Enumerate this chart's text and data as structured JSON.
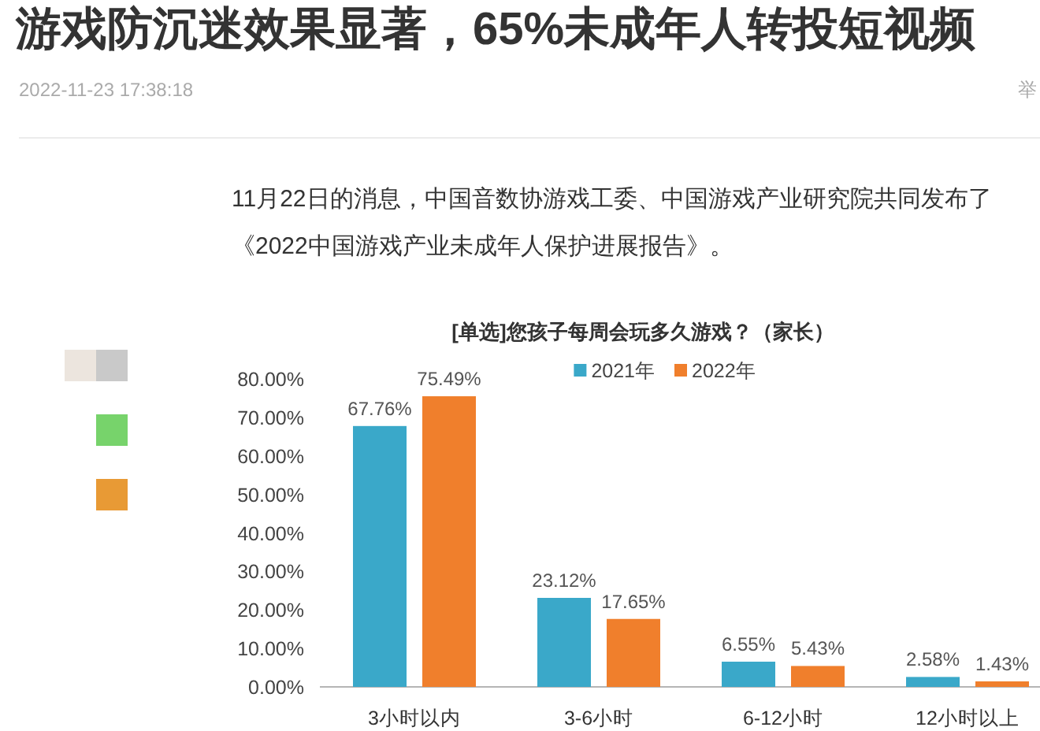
{
  "chart_data": {
    "type": "bar",
    "title": "[单选]您孩子每周会玩多久游戏？（家长）",
    "categories": [
      "3小时以内",
      "3-6小时",
      "6-12小时",
      "12小时以上"
    ],
    "series": [
      {
        "name": "2021年",
        "color": "#3aa8c9",
        "values": [
          67.76,
          23.12,
          6.55,
          2.58
        ],
        "value_labels": [
          "67.76%",
          "23.12%",
          "6.55%",
          "2.58%"
        ]
      },
      {
        "name": "2022年",
        "color": "#f07f2c",
        "values": [
          75.49,
          17.65,
          5.43,
          1.43
        ],
        "value_labels": [
          "75.49%",
          "17.65%",
          "5.43%",
          "1.43%"
        ]
      }
    ],
    "ylim": [
      0,
      80
    ],
    "yticks": [
      {
        "value": 0,
        "label": "0.00%"
      },
      {
        "value": 10,
        "label": "10.00%"
      },
      {
        "value": 20,
        "label": "20.00%"
      },
      {
        "value": 30,
        "label": "30.00%"
      },
      {
        "value": 40,
        "label": "40.00%"
      },
      {
        "value": 50,
        "label": "50.00%"
      },
      {
        "value": 60,
        "label": "60.00%"
      },
      {
        "value": 70,
        "label": "70.00%"
      },
      {
        "value": 80,
        "label": "80.00%"
      }
    ],
    "legend": "top",
    "annotations": [
      "游戏防沉迷效果显著，65%未成年人转投短视频",
      "2022-11-23 17:38:18",
      "举",
      "11月22日的消息，中国音数协游戏工委、中国游戏产业研究院共同发布了《2022中国游戏产业未成年人保护进展报告》。"
    ]
  }
}
